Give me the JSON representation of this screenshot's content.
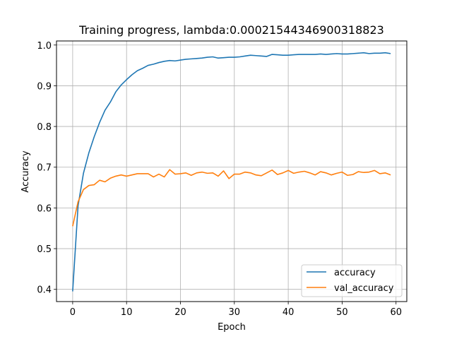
{
  "chart_data": {
    "type": "line",
    "title": "Training progress, lambda:0.00021544346900318823",
    "xlabel": "Epoch",
    "ylabel": "Accuracy",
    "xlim": [
      -3,
      62
    ],
    "ylim": [
      0.37,
      1.01
    ],
    "xticks": [
      0,
      10,
      20,
      30,
      40,
      50,
      60
    ],
    "yticks": [
      0.4,
      0.5,
      0.6,
      0.7,
      0.8,
      0.9,
      1.0
    ],
    "xtick_labels": [
      "0",
      "10",
      "20",
      "30",
      "40",
      "50",
      "60"
    ],
    "ytick_labels": [
      "0.4",
      "0.5",
      "0.6",
      "0.7",
      "0.8",
      "0.9",
      "1.0"
    ],
    "grid": true,
    "legend_position": "lower-right",
    "x": [
      0,
      1,
      2,
      3,
      4,
      5,
      6,
      7,
      8,
      9,
      10,
      11,
      12,
      13,
      14,
      15,
      16,
      17,
      18,
      19,
      20,
      21,
      22,
      23,
      24,
      25,
      26,
      27,
      28,
      29,
      30,
      31,
      32,
      33,
      34,
      35,
      36,
      37,
      38,
      39,
      40,
      41,
      42,
      43,
      44,
      45,
      46,
      47,
      48,
      49,
      50,
      51,
      52,
      53,
      54,
      55,
      56,
      57,
      58,
      59
    ],
    "series": [
      {
        "name": "accuracy",
        "color": "#1f77b4",
        "values": [
          0.395,
          0.605,
          0.685,
          0.735,
          0.775,
          0.81,
          0.84,
          0.86,
          0.885,
          0.902,
          0.915,
          0.927,
          0.937,
          0.943,
          0.95,
          0.953,
          0.957,
          0.96,
          0.962,
          0.961,
          0.963,
          0.965,
          0.966,
          0.967,
          0.968,
          0.97,
          0.971,
          0.968,
          0.969,
          0.97,
          0.97,
          0.971,
          0.973,
          0.975,
          0.974,
          0.973,
          0.972,
          0.977,
          0.976,
          0.975,
          0.975,
          0.976,
          0.977,
          0.977,
          0.977,
          0.977,
          0.978,
          0.977,
          0.978,
          0.979,
          0.978,
          0.978,
          0.979,
          0.98,
          0.981,
          0.979,
          0.98,
          0.98,
          0.981,
          0.979
        ]
      },
      {
        "name": "val_accuracy",
        "color": "#ff7f0e",
        "values": [
          0.555,
          0.615,
          0.645,
          0.655,
          0.657,
          0.668,
          0.664,
          0.673,
          0.678,
          0.681,
          0.678,
          0.681,
          0.684,
          0.684,
          0.684,
          0.676,
          0.683,
          0.676,
          0.694,
          0.683,
          0.684,
          0.686,
          0.68,
          0.686,
          0.688,
          0.685,
          0.686,
          0.678,
          0.691,
          0.672,
          0.683,
          0.683,
          0.688,
          0.686,
          0.681,
          0.679,
          0.686,
          0.693,
          0.682,
          0.686,
          0.692,
          0.685,
          0.688,
          0.69,
          0.686,
          0.681,
          0.689,
          0.686,
          0.681,
          0.685,
          0.688,
          0.68,
          0.682,
          0.689,
          0.687,
          0.688,
          0.692,
          0.684,
          0.686,
          0.681
        ]
      }
    ]
  }
}
